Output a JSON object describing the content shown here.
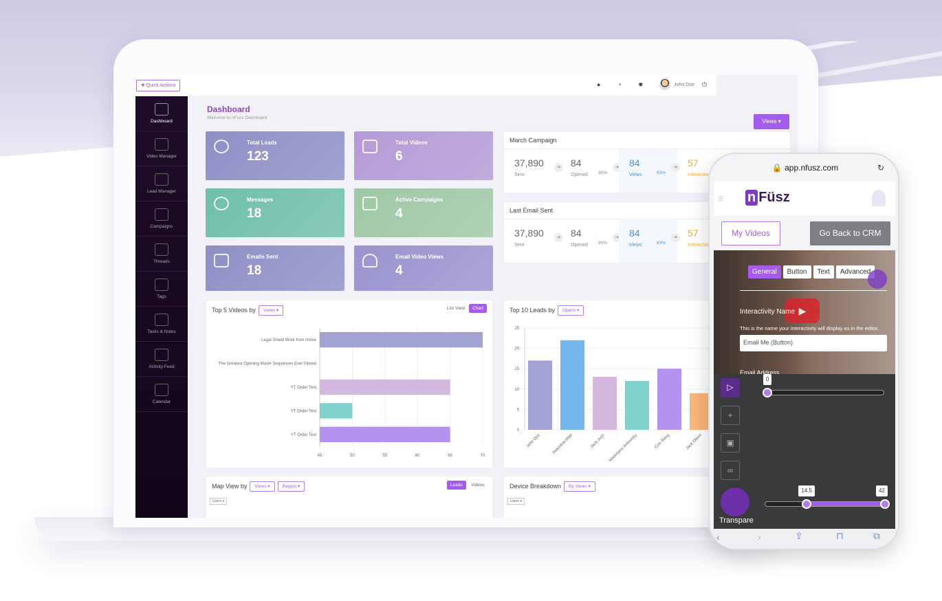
{
  "topbar": {
    "quick_actions": "✚ Quick Actions",
    "user_name": "John Doe"
  },
  "sidebar": {
    "items": [
      {
        "label": "Dashboard"
      },
      {
        "label": "Video Manager"
      },
      {
        "label": "Lead Manager"
      },
      {
        "label": "Campaigns"
      },
      {
        "label": "Threads"
      },
      {
        "label": "Tags"
      },
      {
        "label": "Tasks & Notes"
      },
      {
        "label": "Activity Feed"
      },
      {
        "label": "Calendar"
      }
    ]
  },
  "header": {
    "title": "Dashboard",
    "subtitle": "Welcome to nFusz Dashboard",
    "views_button": "Views ▾"
  },
  "cards": [
    {
      "label": "Total Leads",
      "value": "123",
      "color": "#8f8fc6"
    },
    {
      "label": "Total Videos",
      "value": "6",
      "color": "#b49bd6"
    },
    {
      "label": "Messages",
      "value": "18",
      "color": "#6fbfa9"
    },
    {
      "label": "Active Campaigns",
      "value": "4",
      "color": "#9fc8a6"
    },
    {
      "label": "Emails Sent",
      "value": "18",
      "color": "#8f8fc6"
    },
    {
      "label": "Email Video Views",
      "value": "4",
      "color": "#9a93cf"
    }
  ],
  "march_campaign": {
    "title": "March Campaign",
    "sent": "37,890",
    "sent_label": "Sent",
    "opened": "84",
    "opened_label": "Opened",
    "opened_pct": "90%",
    "views": "84",
    "views_label": "Views",
    "views_pct": "83%",
    "interactions": "57",
    "interactions_label": "Interactions"
  },
  "last_email": {
    "title": "Last Email Sent",
    "sent": "37,890",
    "sent_label": "Sent",
    "opened": "84",
    "opened_label": "Opened",
    "opened_pct": "90%",
    "views": "84",
    "views_label": "Views",
    "views_pct": "83%",
    "interactions": "57",
    "interactions_label": "Interactions"
  },
  "top_videos": {
    "title": "Top 5 Videos by",
    "dropdown": "Views ▾",
    "list_view": "List View",
    "chart_btn": "Chart"
  },
  "top_leads": {
    "title": "Top 10 Leads by",
    "dropdown": "Opens ▾"
  },
  "map_view": {
    "title": "Map View by",
    "dropdown1": "Views ▾",
    "dropdown2": "Region ▾",
    "leads_btn": "Leads",
    "videos_btn": "Videos",
    "small_dd": "Users ▾"
  },
  "device": {
    "title": "Device Breakdown",
    "dropdown": "By Views ▾",
    "small_dd": "Users ▾"
  },
  "chart_data": [
    {
      "type": "bar",
      "orientation": "horizontal",
      "categories": [
        "Legal Shield Work from Home",
        "The Greatest Opening Movie Sequences Ever Filmed",
        "YT Order Test",
        "YT Order Test",
        "YT Order Test"
      ],
      "values": [
        70,
        45,
        65,
        50,
        65
      ],
      "colors": [
        "#a3a3d3",
        "#e0e0e0",
        "#d5b8dd",
        "#7fd3cc",
        "#b392f0"
      ],
      "xticks": [
        "45",
        "50",
        "55",
        "60",
        "65",
        "70"
      ],
      "xlim": [
        45,
        70
      ],
      "grid": true
    },
    {
      "type": "bar",
      "categories": [
        "John Doe",
        "Jaqueline Matt",
        "Jack Josh",
        "Madelaine Antowsky",
        "Cois Bang",
        "Jack Olsen"
      ],
      "values": [
        17,
        22,
        13,
        12,
        15,
        9
      ],
      "colors": [
        "#a3a3d3",
        "#74b7ee",
        "#d5b8dd",
        "#7fd3cc",
        "#b392f0",
        "#fbb57a"
      ],
      "yticks": [
        "0",
        "5",
        "10",
        "15",
        "20",
        "25"
      ],
      "ylim": [
        0,
        25
      ],
      "grid": true
    }
  ],
  "phone": {
    "url": "🔒 app.nfusz.com",
    "logo_n": "n",
    "logo_rest": "Füsz",
    "my_videos": "My Videos",
    "go_back": "Go Back to CRM",
    "tabs": [
      "General",
      "Button",
      "Text",
      "Advanced"
    ],
    "interactivity_label": "Interactivity Name",
    "interactivity_help": "This is the name your interactivity will display as in the editor.",
    "interactivity_value": "Email Me (Button)",
    "email_label": "Email Address",
    "slider1_value": "0",
    "slider2_low": "14.5",
    "slider2_high": "42",
    "transparency_label": "Transpare"
  }
}
